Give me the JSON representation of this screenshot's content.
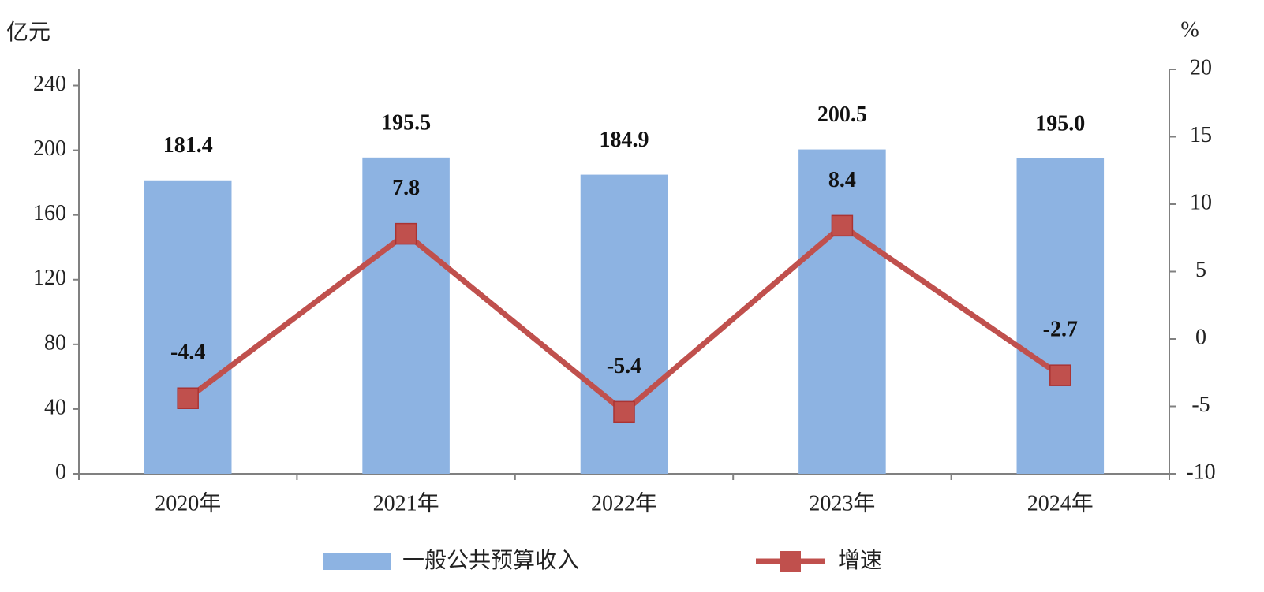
{
  "chart_data": {
    "type": "bar-line",
    "y_label": "亿元",
    "y2_label": "%",
    "categories": [
      "2020年",
      "2021年",
      "2022年",
      "2023年",
      "2024年"
    ],
    "series": [
      {
        "name": "一般公共预算收入",
        "color": "#8db3e2",
        "type": "bar",
        "values": [
          181.4,
          195.5,
          184.9,
          200.5,
          195.0
        ],
        "value_labels": [
          "181.4",
          "195.5",
          "184.9",
          "200.5",
          "195.0"
        ]
      },
      {
        "name": "增速",
        "color": "#c0504d",
        "type": "line",
        "axis": "y2",
        "values": [
          -4.4,
          7.8,
          -5.4,
          8.4,
          -2.7
        ]
      }
    ],
    "ylim": [
      0,
      250
    ],
    "yticks": [
      0,
      40,
      80,
      120,
      160,
      200,
      240
    ],
    "y2lim": [
      -10,
      20
    ],
    "y2ticks": [
      -10,
      -5,
      0,
      5,
      10,
      15,
      20
    ],
    "grid": false,
    "legend": "bottom"
  }
}
